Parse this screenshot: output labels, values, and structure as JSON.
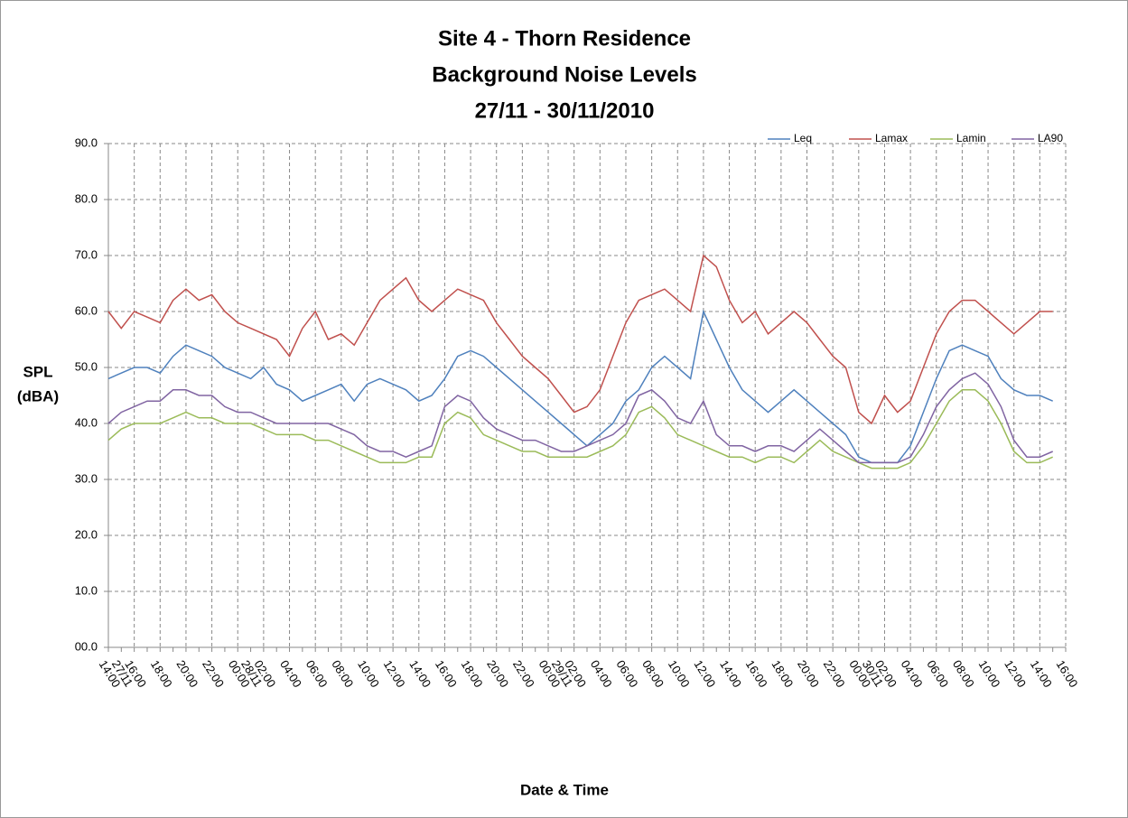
{
  "chart_data": {
    "type": "line",
    "title": [
      "Site 4 - Thorn Residence",
      "Background Noise Levels",
      "27/11 - 30/11/2010"
    ],
    "y_label": [
      "SPL",
      "(dBA)"
    ],
    "x_label": "Date & Time",
    "categories": [
      "14:00",
      "27/11",
      "16:00",
      null,
      "18:00",
      null,
      "20:00",
      null,
      "22:00",
      null,
      "00:00",
      "28/11",
      "02:00",
      null,
      "04:00",
      null,
      "06:00",
      null,
      "08:00",
      null,
      "10:00",
      null,
      "12:00",
      null,
      "14:00",
      null,
      "16:00",
      null,
      "18:00",
      null,
      "20:00",
      null,
      "22:00",
      null,
      "00:00",
      "29/11",
      "02:00",
      null,
      "04:00",
      null,
      "06:00",
      null,
      "08:00",
      null,
      "10:00",
      null,
      "12:00",
      null,
      "14:00",
      null,
      "16:00",
      null,
      "18:00",
      null,
      "20:00",
      null,
      "22:00",
      null,
      "00:00",
      "30/11",
      "02:00",
      null,
      "04:00",
      null,
      "06:00",
      null,
      "08:00",
      null,
      "10:00",
      null,
      "12:00",
      null,
      "14:00",
      null,
      "16:00"
    ],
    "series": [
      {
        "name": "Leq",
        "color": "#4f81bd",
        "values": [
          48,
          49,
          50,
          50,
          49,
          52,
          54,
          53,
          52,
          50,
          49,
          48,
          50,
          47,
          46,
          44,
          45,
          46,
          47,
          44,
          47,
          48,
          47,
          46,
          44,
          45,
          48,
          52,
          53,
          52,
          50,
          48,
          46,
          44,
          42,
          40,
          38,
          36,
          38,
          40,
          44,
          46,
          50,
          52,
          50,
          48,
          60,
          55,
          50,
          46,
          44,
          42,
          44,
          46,
          44,
          42,
          40,
          38,
          34,
          33,
          33,
          33,
          36,
          42,
          48,
          53,
          54,
          53,
          52,
          48,
          46,
          45,
          45,
          44,
          null
        ]
      },
      {
        "name": "Lamax",
        "color": "#c0504d",
        "values": [
          60,
          57,
          60,
          59,
          58,
          62,
          64,
          62,
          63,
          60,
          58,
          57,
          56,
          55,
          52,
          57,
          60,
          55,
          56,
          54,
          58,
          62,
          64,
          66,
          62,
          60,
          62,
          64,
          63,
          62,
          58,
          55,
          52,
          50,
          48,
          45,
          42,
          43,
          46,
          52,
          58,
          62,
          63,
          64,
          62,
          60,
          70,
          68,
          62,
          58,
          60,
          56,
          58,
          60,
          58,
          55,
          52,
          50,
          42,
          40,
          45,
          42,
          44,
          50,
          56,
          60,
          62,
          62,
          60,
          58,
          56,
          58,
          60,
          60,
          null
        ]
      },
      {
        "name": "Lamin",
        "color": "#9bbb59",
        "values": [
          37,
          39,
          40,
          40,
          40,
          41,
          42,
          41,
          41,
          40,
          40,
          40,
          39,
          38,
          38,
          38,
          37,
          37,
          36,
          35,
          34,
          33,
          33,
          33,
          34,
          34,
          40,
          42,
          41,
          38,
          37,
          36,
          35,
          35,
          34,
          34,
          34,
          34,
          35,
          36,
          38,
          42,
          43,
          41,
          38,
          37,
          36,
          35,
          34,
          34,
          33,
          34,
          34,
          33,
          35,
          37,
          35,
          34,
          33,
          32,
          32,
          32,
          33,
          36,
          40,
          44,
          46,
          46,
          44,
          40,
          35,
          33,
          33,
          34,
          null
        ]
      },
      {
        "name": "LA90",
        "color": "#8064a2",
        "values": [
          40,
          42,
          43,
          44,
          44,
          46,
          46,
          45,
          45,
          43,
          42,
          42,
          41,
          40,
          40,
          40,
          40,
          40,
          39,
          38,
          36,
          35,
          35,
          34,
          35,
          36,
          43,
          45,
          44,
          41,
          39,
          38,
          37,
          37,
          36,
          35,
          35,
          36,
          37,
          38,
          40,
          45,
          46,
          44,
          41,
          40,
          44,
          38,
          36,
          36,
          35,
          36,
          36,
          35,
          37,
          39,
          37,
          35,
          33,
          33,
          33,
          33,
          34,
          38,
          43,
          46,
          48,
          49,
          47,
          43,
          37,
          34,
          34,
          35,
          null
        ]
      }
    ],
    "ylim": [
      0,
      90
    ],
    "yticks": [
      {
        "value": 0,
        "label": "00.0"
      },
      {
        "value": 10,
        "label": "10.0"
      },
      {
        "value": 20,
        "label": "20.0"
      },
      {
        "value": 30,
        "label": "30.0"
      },
      {
        "value": 40,
        "label": "40.0"
      },
      {
        "value": 50,
        "label": "50.0"
      },
      {
        "value": 60,
        "label": "60.0"
      },
      {
        "value": 70,
        "label": "70.0"
      },
      {
        "value": 80,
        "label": "80.0"
      },
      {
        "value": 90,
        "label": "90.0"
      }
    ],
    "grid": true,
    "legend": "top-right"
  }
}
